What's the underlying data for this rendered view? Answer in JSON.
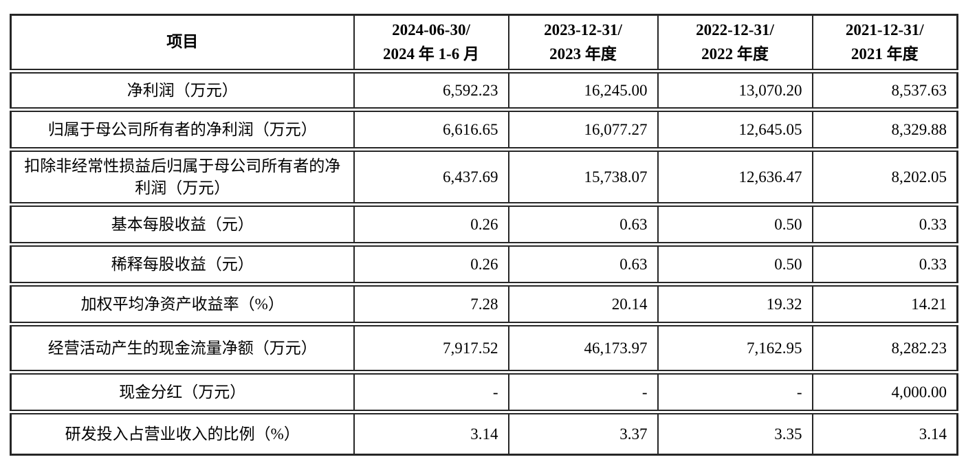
{
  "colors": {
    "background": "#ffffff",
    "text": "#000000",
    "border": "#262626"
  },
  "table": {
    "header": {
      "item_label": "项目",
      "periods": [
        {
          "line1": "2024-06-30/",
          "line2": "2024 年 1-6 月"
        },
        {
          "line1": "2023-12-31/",
          "line2": "2023 年度"
        },
        {
          "line1": "2022-12-31/",
          "line2": "2022 年度"
        },
        {
          "line1": "2021-12-31/",
          "line2": "2021 年度"
        }
      ]
    },
    "rows": [
      {
        "label": "净利润（万元）",
        "values": [
          "6,592.23",
          "16,245.00",
          "13,070.20",
          "8,537.63"
        ]
      },
      {
        "label": "归属于母公司所有者的净利润（万元）",
        "values": [
          "6,616.65",
          "16,077.27",
          "12,645.05",
          "8,329.88"
        ]
      },
      {
        "label": "扣除非经常性损益后归属于母公司所有者的净利润（万元）",
        "values": [
          "6,437.69",
          "15,738.07",
          "12,636.47",
          "8,202.05"
        ]
      },
      {
        "label": "基本每股收益（元）",
        "values": [
          "0.26",
          "0.63",
          "0.50",
          "0.33"
        ]
      },
      {
        "label": "稀释每股收益（元）",
        "values": [
          "0.26",
          "0.63",
          "0.50",
          "0.33"
        ]
      },
      {
        "label": "加权平均净资产收益率（%）",
        "values": [
          "7.28",
          "20.14",
          "19.32",
          "14.21"
        ]
      },
      {
        "label": "经营活动产生的现金流量净额（万元）",
        "values": [
          "7,917.52",
          "46,173.97",
          "7,162.95",
          "8,282.23"
        ]
      },
      {
        "label": "现金分红（万元）",
        "values": [
          "-",
          "-",
          "-",
          "4,000.00"
        ]
      },
      {
        "label": "研发投入占营业收入的比例（%）",
        "values": [
          "3.14",
          "3.37",
          "3.35",
          "3.14"
        ]
      }
    ]
  }
}
